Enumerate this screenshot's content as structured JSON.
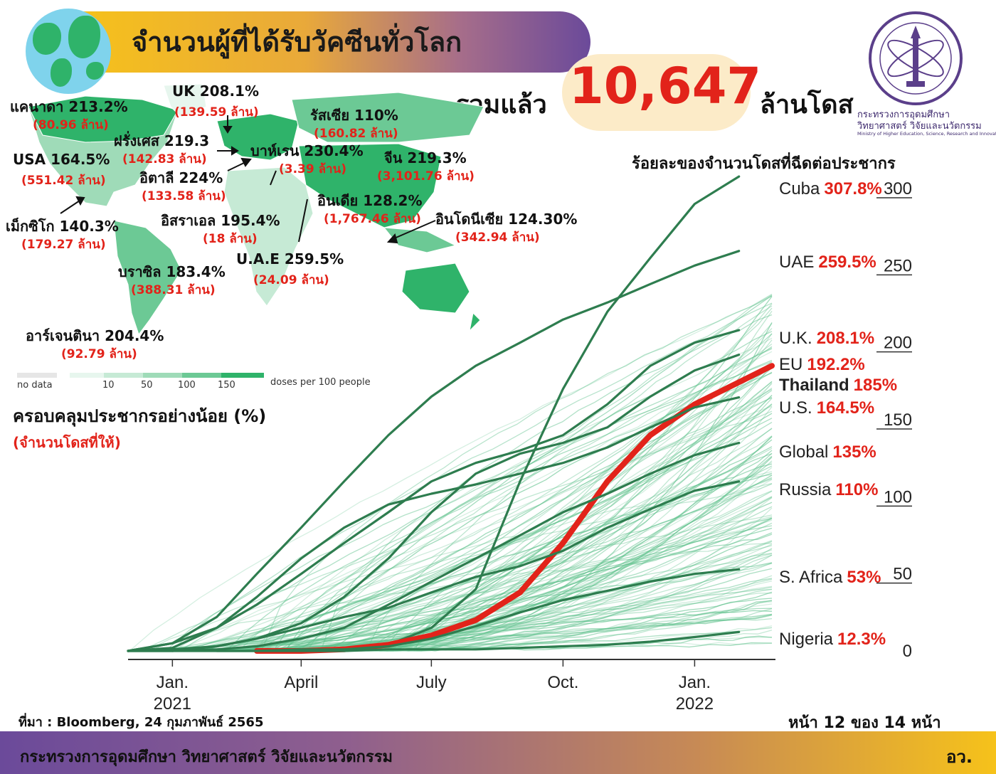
{
  "header": {
    "title": "จำนวนผู้ที่ได้รับวัคซีนทั่วโลก",
    "total_label": "รวมแล้ว",
    "total_value": "10,647",
    "total_unit": "ล้านโดส"
  },
  "logo": {
    "line1": "กระทรวงการอุดมศึกษา",
    "line2": "วิทยาศาสตร์ วิจัยและนวัตกรรม",
    "line3": "Ministry of Higher Education, Science, Research and Innovation"
  },
  "map": {
    "countries": [
      {
        "name": "แคนาดา 213.2%",
        "doses": "(80.96 ล้าน)"
      },
      {
        "name": "UK 208.1%",
        "doses": "(139.59 ล้าน)"
      },
      {
        "name": "รัสเซีย 110%",
        "doses": "(160.82 ล้าน)"
      },
      {
        "name": "ฝรั่งเศส 219.3",
        "doses": "(142.83 ล้าน)"
      },
      {
        "name": "บาห์เรน 230.4%",
        "doses": "(3.39 ล้าน)"
      },
      {
        "name": "จีน 219.3%",
        "doses": "(3,101.76 ล้าน)"
      },
      {
        "name": "USA 164.5%",
        "doses": "(551.42 ล้าน)"
      },
      {
        "name": "อิตาลี 224%",
        "doses": "(133.58 ล้าน)"
      },
      {
        "name": "อินเดีย 128.2%",
        "doses": "(1,767.46 ล้าน)"
      },
      {
        "name": "เม็กซิโก 140.3%",
        "doses": "(179.27 ล้าน)"
      },
      {
        "name": "อิสราเอล 195.4%",
        "doses": "(18 ล้าน)"
      },
      {
        "name": "อินโดนีเซีย 124.30%",
        "doses": "(342.94 ล้าน)"
      },
      {
        "name": "U.A.E 259.5%",
        "doses": "(24.09 ล้าน)"
      },
      {
        "name": "บราซิล 183.4%",
        "doses": "(388.31 ล้าน)"
      },
      {
        "name": "อาร์เจนตินา 204.4%",
        "doses": "(92.79 ล้าน)"
      }
    ],
    "legend": {
      "no_data": "no data",
      "ticks": [
        "10",
        "50",
        "100",
        "150"
      ],
      "unit": "doses per 100 people",
      "colors": [
        "#e6e6e6",
        "#e7f6ee",
        "#c6ead5",
        "#9fdbb8",
        "#6cc995",
        "#2fb36a",
        "#0e9a55"
      ]
    }
  },
  "coverage_title": "ครอบคลุมประชากรอย่างน้อย (%)",
  "coverage_subtitle": "(จำนวนโดสที่ให้)",
  "chart_title": "ร้อยละของจำนวนโดสที่ฉีดต่อประชากร",
  "chart_data": {
    "type": "line",
    "title": "ร้อยละของจำนวนโดสที่ฉีดต่อประชากร",
    "xlabel": "",
    "ylabel": "",
    "x_ticks": [
      "Jan. 2021",
      "April",
      "July",
      "Oct.",
      "Jan. 2022"
    ],
    "x_range": [
      "2020-12",
      "2022-02-24"
    ],
    "ylim": [
      0,
      300
    ],
    "y_ticks": [
      0,
      50,
      100,
      150,
      200,
      250,
      300
    ],
    "series": [
      {
        "name": "Cuba",
        "label": "307.8%",
        "final": 307.8,
        "color": "#2e7d4f",
        "x": [
          "2021-01",
          "2021-04",
          "2021-05",
          "2021-06",
          "2021-07",
          "2021-08",
          "2021-09",
          "2021-10",
          "2021-11",
          "2021-12",
          "2022-01",
          "2022-02"
        ],
        "values": [
          0,
          0,
          1,
          4,
          15,
          40,
          110,
          170,
          220,
          255,
          290,
          307.8
        ]
      },
      {
        "name": "UAE",
        "label": "259.5%",
        "final": 259.5,
        "color": "#2e7d4f",
        "x": [
          "2020-12",
          "2021-01",
          "2021-02",
          "2021-03",
          "2021-04",
          "2021-05",
          "2021-06",
          "2021-07",
          "2021-08",
          "2021-09",
          "2021-10",
          "2021-11",
          "2021-12",
          "2022-01",
          "2022-02"
        ],
        "values": [
          0,
          5,
          22,
          50,
          80,
          110,
          140,
          165,
          185,
          200,
          215,
          226,
          238,
          250,
          259.5
        ]
      },
      {
        "name": "U.K.",
        "label": "208.1%",
        "final": 208.1,
        "color": "#2e7d4f",
        "x": [
          "2020-12",
          "2021-01",
          "2021-02",
          "2021-03",
          "2021-04",
          "2021-05",
          "2021-06",
          "2021-07",
          "2021-08",
          "2021-09",
          "2021-10",
          "2021-11",
          "2021-12",
          "2022-01",
          "2022-02"
        ],
        "values": [
          0,
          2,
          15,
          30,
          50,
          70,
          90,
          110,
          122,
          130,
          140,
          160,
          185,
          200,
          208.1
        ]
      },
      {
        "name": "EU",
        "label": "192.2%",
        "final": 192.2,
        "color": "#2e7d4f",
        "x": [
          "2020-12",
          "2021-01",
          "2021-02",
          "2021-03",
          "2021-04",
          "2021-05",
          "2021-06",
          "2021-07",
          "2021-08",
          "2021-09",
          "2021-10",
          "2021-11",
          "2021-12",
          "2022-01",
          "2022-02"
        ],
        "values": [
          0,
          0,
          3,
          8,
          18,
          35,
          60,
          90,
          115,
          128,
          135,
          145,
          165,
          182,
          192.2
        ]
      },
      {
        "name": "Thailand",
        "label": "185%",
        "final": 185,
        "color": "#e2231a",
        "x": [
          "2021-03",
          "2021-04",
          "2021-05",
          "2021-06",
          "2021-07",
          "2021-08",
          "2021-09",
          "2021-10",
          "2021-11",
          "2021-12",
          "2022-01",
          "2022-02-24"
        ],
        "values": [
          0,
          0,
          1,
          4,
          10,
          20,
          38,
          70,
          110,
          140,
          160,
          185
        ]
      },
      {
        "name": "U.S.",
        "label": "164.5%",
        "final": 164.5,
        "color": "#2e7d4f",
        "x": [
          "2020-12",
          "2021-01",
          "2021-02",
          "2021-03",
          "2021-04",
          "2021-05",
          "2021-06",
          "2021-07",
          "2021-08",
          "2021-09",
          "2021-10",
          "2021-11",
          "2021-12",
          "2022-01",
          "2022-02"
        ],
        "values": [
          0,
          5,
          15,
          35,
          60,
          80,
          95,
          102,
          108,
          115,
          122,
          132,
          145,
          158,
          164.5
        ]
      },
      {
        "name": "Global",
        "label": "135%",
        "final": 135,
        "color": "#2e7d4f",
        "x": [
          "2020-12",
          "2021-01",
          "2021-02",
          "2021-03",
          "2021-04",
          "2021-05",
          "2021-06",
          "2021-07",
          "2021-08",
          "2021-09",
          "2021-10",
          "2021-11",
          "2021-12",
          "2022-01",
          "2022-02"
        ],
        "values": [
          0,
          0,
          1,
          3,
          8,
          15,
          30,
          45,
          60,
          75,
          90,
          102,
          115,
          127,
          135
        ]
      },
      {
        "name": "Russia",
        "label": "110%",
        "final": 110,
        "color": "#2e7d4f",
        "x": [
          "2020-12",
          "2021-01",
          "2021-02",
          "2021-03",
          "2021-04",
          "2021-05",
          "2021-06",
          "2021-07",
          "2021-08",
          "2021-09",
          "2021-10",
          "2021-11",
          "2021-12",
          "2022-01",
          "2022-02"
        ],
        "values": [
          0,
          1,
          3,
          8,
          15,
          22,
          28,
          38,
          48,
          55,
          65,
          80,
          92,
          104,
          110
        ]
      },
      {
        "name": "S. Africa",
        "label": "53%",
        "final": 53,
        "color": "#2e7d4f",
        "x": [
          "2021-02",
          "2021-03",
          "2021-04",
          "2021-05",
          "2021-06",
          "2021-07",
          "2021-08",
          "2021-09",
          "2021-10",
          "2021-11",
          "2021-12",
          "2022-01",
          "2022-02"
        ],
        "values": [
          0,
          0,
          1,
          1,
          3,
          8,
          16,
          25,
          33,
          39,
          45,
          50,
          53
        ]
      },
      {
        "name": "Nigeria",
        "label": "12.3%",
        "final": 12.3,
        "color": "#2e7d4f",
        "x": [
          "2021-03",
          "2021-04",
          "2021-05",
          "2021-06",
          "2021-07",
          "2021-08",
          "2021-09",
          "2021-10",
          "2021-11",
          "2021-12",
          "2022-01",
          "2022-02"
        ],
        "values": [
          0,
          0,
          0,
          1,
          1,
          1,
          2,
          3,
          4,
          6,
          9,
          12.3
        ]
      }
    ]
  },
  "source": "ที่มา : Bloomberg, 24 กุมภาพันธ์ 2565",
  "page": "หน้า 12 ของ 14 หน้า",
  "footer": {
    "ministry": "กระทรวงการอุดมศึกษา วิทยาศาสตร์ วิจัยและนวัตกรรม",
    "abbr": "อว."
  }
}
